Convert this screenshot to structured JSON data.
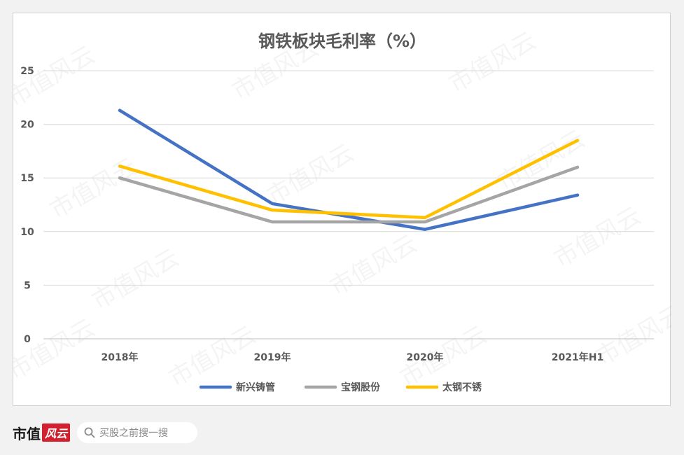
{
  "chart_data": {
    "type": "line",
    "title": "钢铁板块毛利率（%）",
    "categories": [
      "2018年",
      "2019年",
      "2020年",
      "2021年H1"
    ],
    "ylim": [
      0,
      25
    ],
    "yticks": [
      0,
      5,
      10,
      15,
      20,
      25
    ],
    "grid": true,
    "legend_position": "bottom",
    "series": [
      {
        "name": "新兴铸管",
        "values": [
          21.3,
          12.6,
          10.2,
          13.4
        ],
        "color": "#4472c4"
      },
      {
        "name": "宝钢股份",
        "values": [
          15.0,
          10.9,
          10.9,
          16.0
        ],
        "color": "#a5a5a5"
      },
      {
        "name": "太钢不锈",
        "values": [
          16.1,
          12.0,
          11.3,
          18.5
        ],
        "color": "#ffc000"
      }
    ]
  },
  "watermark": "市值风云",
  "footer": {
    "brand_text": "市值",
    "brand_mark": "风云",
    "search_placeholder": "买股之前搜一搜"
  }
}
